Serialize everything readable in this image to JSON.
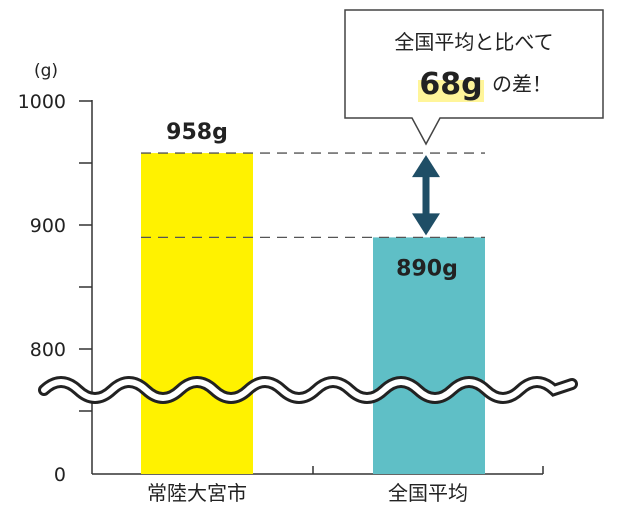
{
  "chart_data": {
    "type": "bar",
    "categories": [
      "常陸大宮市",
      "全国平均"
    ],
    "values": [
      958,
      890
    ],
    "value_labels": [
      "958g",
      "890g"
    ],
    "unit_label": "(g)",
    "y_ticks": [
      "0",
      "800",
      "900",
      "1000"
    ],
    "ylim_upper": [
      750,
      1000
    ],
    "axis_break": true,
    "bar_colors": [
      "#fff200",
      "#5fbfc6"
    ],
    "difference": 68,
    "callout": {
      "line1": "全国平均と比べて",
      "big": "68g",
      "suffix": "の差！",
      "highlight_color": "#fff59a"
    },
    "arrow_color": "#1f4e66"
  }
}
